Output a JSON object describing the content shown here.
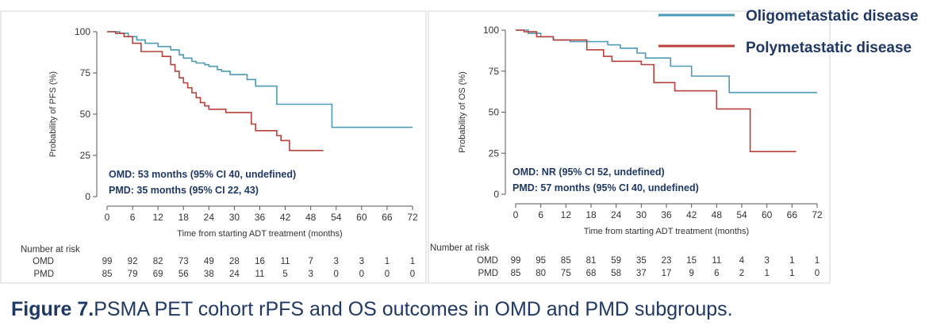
{
  "legend": {
    "items": [
      {
        "label": "Oligometastatic disease",
        "color": "#4a9bb5"
      },
      {
        "label": "Polymetastatic disease",
        "color": "#b8403a"
      }
    ],
    "text_color": "#1f3864"
  },
  "caption": {
    "label": "Figure 7.",
    "text": "PSMA PET cohort rPFS and OS outcomes in OMD and PMD subgroups."
  },
  "chart_data": [
    {
      "type": "line",
      "id": "pfs",
      "xlabel": "Time from starting ADT treatment (months)",
      "ylabel": "Probability of PFS (%)",
      "xlim": [
        0,
        72
      ],
      "ylim": [
        0,
        100
      ],
      "xticks": [
        0,
        6,
        12,
        18,
        24,
        30,
        36,
        42,
        48,
        54,
        60,
        66,
        72
      ],
      "yticks": [
        0,
        25,
        50,
        75,
        100
      ],
      "grid": false,
      "series": [
        {
          "key": "omd",
          "color": "#4a9bb5",
          "x": [
            0,
            3,
            5,
            7,
            9,
            12,
            15,
            17,
            18,
            20,
            21,
            23,
            24,
            26,
            27,
            29,
            33,
            35,
            40,
            53,
            72
          ],
          "y": [
            100,
            99,
            97,
            95,
            93,
            91,
            89,
            86,
            84,
            82,
            81,
            80,
            79,
            77,
            76,
            74,
            71,
            67,
            56,
            42,
            42
          ]
        },
        {
          "key": "pmd",
          "color": "#b8403a",
          "x": [
            0,
            2,
            4,
            6,
            8,
            13,
            15,
            16,
            17,
            18,
            19,
            20,
            21,
            22,
            23,
            24,
            25,
            28,
            34,
            35,
            40,
            41,
            43,
            51
          ],
          "y": [
            100,
            99,
            97,
            93,
            88,
            85,
            80,
            76,
            72,
            69,
            66,
            63,
            60,
            57,
            55,
            53,
            53,
            51,
            44,
            40,
            37,
            34,
            28,
            28
          ]
        }
      ],
      "annotations": [
        "OMD: 53 months (95% CI 40, undefined)",
        "PMD: 35 months (95% CI 22, 43)"
      ],
      "risk_table": {
        "title": "Number at risk",
        "rows": [
          {
            "label": "OMD",
            "values": [
              "99",
              "92",
              "82",
              "73",
              "49",
              "28",
              "16",
              "11",
              "7",
              "3",
              "3",
              "1",
              "1"
            ]
          },
          {
            "label": "PMD",
            "values": [
              "85",
              "79",
              "69",
              "56",
              "38",
              "24",
              "11",
              "5",
              "3",
              "0",
              "0",
              "0",
              "0"
            ]
          }
        ]
      }
    },
    {
      "type": "line",
      "id": "os",
      "xlabel": "Time from starting ADT treatment (months)",
      "ylabel": "Probability of OS (%)",
      "xlim": [
        0,
        72
      ],
      "ylim": [
        0,
        100
      ],
      "xticks": [
        0,
        6,
        12,
        18,
        24,
        30,
        36,
        42,
        48,
        54,
        60,
        66,
        72
      ],
      "yticks": [
        0,
        25,
        50,
        75,
        100
      ],
      "grid": false,
      "series": [
        {
          "key": "omd",
          "color": "#4a9bb5",
          "x": [
            0,
            3,
            6,
            9,
            13,
            22,
            25,
            29,
            31,
            37,
            42,
            51,
            72
          ],
          "y": [
            100,
            98,
            96,
            94,
            93,
            91,
            89,
            86,
            83,
            78,
            72,
            62,
            62
          ]
        },
        {
          "key": "pmd",
          "color": "#b8403a",
          "x": [
            0,
            2,
            5,
            9,
            17,
            21,
            23,
            30,
            33,
            38,
            48,
            56,
            67
          ],
          "y": [
            100,
            99,
            96,
            94,
            88,
            84,
            81,
            79,
            68,
            63,
            52,
            26,
            26
          ]
        }
      ],
      "annotations": [
        "OMD: NR (95% CI 52, undefined)",
        "PMD: 57 months (95% CI 40, undefined)"
      ],
      "risk_table": {
        "title": "Number at risk",
        "rows": [
          {
            "label": "OMD",
            "values": [
              "99",
              "95",
              "85",
              "81",
              "59",
              "35",
              "23",
              "15",
              "11",
              "4",
              "3",
              "1",
              "1"
            ]
          },
          {
            "label": "PMD",
            "values": [
              "85",
              "80",
              "75",
              "68",
              "58",
              "37",
              "17",
              "9",
              "6",
              "2",
              "1",
              "1",
              "0"
            ]
          }
        ]
      }
    }
  ]
}
